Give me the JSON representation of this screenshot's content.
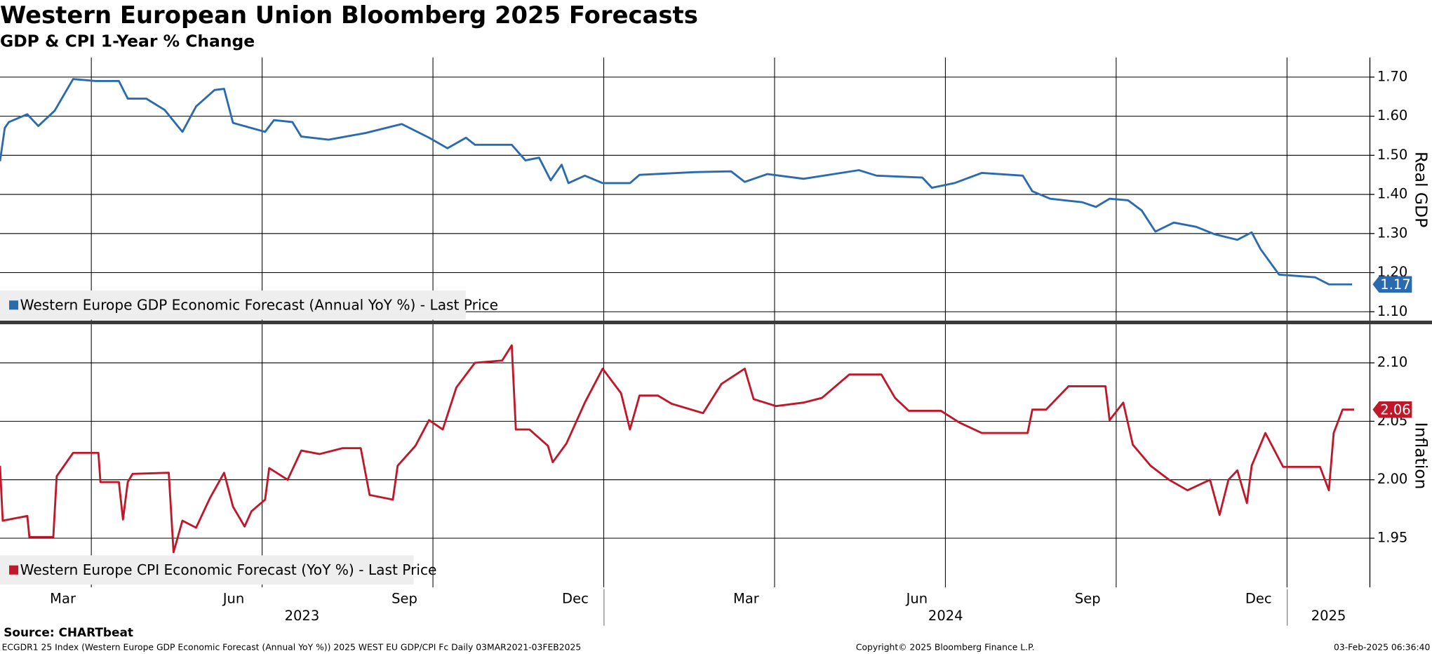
{
  "title": "Western European Union Bloomberg 2025 Forecasts",
  "subtitle": "GDP & CPI 1-Year % Change",
  "footer": {
    "source": "Source: CHARTbeat",
    "description": "ECGDR1 25 Index (Western Europe GDP Economic Forecast (Annual YoY %)) 2025 WEST EU GDP/CPI Fc  Daily 03MAR2021-03FEB2025",
    "copyright": "Copyright© 2025 Bloomberg Finance L.P.",
    "timestamp": "03-Feb-2025 06:36:40"
  },
  "chart_data": [
    {
      "type": "line",
      "ylabel": "Real GDP",
      "grid": true,
      "xlim": [
        2023.116,
        2025.121
      ],
      "ylim": [
        1.075,
        1.75
      ],
      "yticks": [
        {
          "value": 1.1,
          "label": "1.10"
        },
        {
          "value": 1.2,
          "label": "1.20"
        },
        {
          "value": 1.3,
          "label": "1.30"
        },
        {
          "value": 1.4,
          "label": "1.40"
        },
        {
          "value": 1.5,
          "label": "1.50"
        },
        {
          "value": 1.6,
          "label": "1.60"
        },
        {
          "value": 1.7,
          "label": "1.70"
        }
      ],
      "x": [
        2023.116,
        2023.123,
        2023.129,
        2023.156,
        2023.172,
        2023.196,
        2023.223,
        2023.256,
        2023.29,
        2023.303,
        2023.33,
        2023.357,
        2023.383,
        2023.403,
        2023.43,
        2023.444,
        2023.457,
        2023.504,
        2023.517,
        2023.544,
        2023.557,
        2023.597,
        2023.651,
        2023.704,
        2023.744,
        2023.771,
        2023.798,
        2023.811,
        2023.865,
        2023.885,
        2023.905,
        2023.922,
        2023.938,
        2023.948,
        2023.972,
        2023.998,
        2024.038,
        2024.052,
        2024.132,
        2024.186,
        2024.206,
        2024.239,
        2024.292,
        2024.373,
        2024.399,
        2024.466,
        2024.48,
        2024.513,
        2024.553,
        2024.613,
        2024.627,
        2024.653,
        2024.7,
        2024.72,
        2024.74,
        2024.767,
        2024.787,
        2024.807,
        2024.834,
        2024.867,
        2024.894,
        2024.927,
        2024.948,
        2024.961,
        2024.988,
        2025.041,
        2025.061,
        2025.095
      ],
      "series": [
        {
          "name": "Western Europe GDP Economic Forecast (Annual YoY %) - Last Price",
          "color": "#2a6bb0",
          "values": [
            1.485,
            1.57,
            1.585,
            1.605,
            1.575,
            1.614,
            1.695,
            1.69,
            1.69,
            1.645,
            1.645,
            1.616,
            1.56,
            1.625,
            1.667,
            1.67,
            1.583,
            1.56,
            1.59,
            1.585,
            1.548,
            1.54,
            1.557,
            1.58,
            1.545,
            1.518,
            1.545,
            1.527,
            1.527,
            1.487,
            1.494,
            1.436,
            1.476,
            1.429,
            1.448,
            1.429,
            1.429,
            1.45,
            1.457,
            1.459,
            1.432,
            1.452,
            1.44,
            1.462,
            1.448,
            1.443,
            1.417,
            1.429,
            1.455,
            1.448,
            1.408,
            1.389,
            1.38,
            1.368,
            1.389,
            1.385,
            1.359,
            1.305,
            1.328,
            1.317,
            1.298,
            1.284,
            1.303,
            1.26,
            1.195,
            1.188,
            1.17,
            1.17
          ]
        }
      ]
    },
    {
      "type": "line",
      "ylabel": "Inflation",
      "grid": true,
      "xlim": [
        2023.116,
        2025.121
      ],
      "ylim": [
        1.908,
        2.133
      ],
      "yticks": [
        {
          "value": 1.95,
          "label": "1.95"
        },
        {
          "value": 2.0,
          "label": "2.00"
        },
        {
          "value": 2.05,
          "label": "2.05"
        },
        {
          "value": 2.1,
          "label": "2.10"
        }
      ],
      "xticks": [
        {
          "value": 2023.208,
          "label": "Mar"
        },
        {
          "value": 2023.458,
          "label": "Jun"
        },
        {
          "value": 2023.708,
          "label": "Sep"
        },
        {
          "value": 2023.958,
          "label": "Dec"
        },
        {
          "value": 2024.208,
          "label": "Mar"
        },
        {
          "value": 2024.458,
          "label": "Jun"
        },
        {
          "value": 2024.708,
          "label": "Sep"
        },
        {
          "value": 2024.958,
          "label": "Dec"
        }
      ],
      "year_ticks": [
        {
          "value": 2023,
          "label": "2023"
        },
        {
          "value": 2024,
          "label": "2024"
        },
        {
          "value": 2025,
          "label": "2025"
        }
      ],
      "x": [
        2023.116,
        2023.12,
        2023.156,
        2023.159,
        2023.194,
        2023.199,
        2023.223,
        2023.26,
        2023.263,
        2023.29,
        2023.296,
        2023.303,
        2023.31,
        2023.363,
        2023.37,
        2023.383,
        2023.403,
        2023.423,
        2023.444,
        2023.457,
        2023.474,
        2023.484,
        2023.504,
        2023.51,
        2023.537,
        2023.557,
        2023.584,
        2023.617,
        2023.644,
        2023.657,
        2023.691,
        2023.698,
        2023.724,
        2023.744,
        2023.764,
        2023.784,
        2023.811,
        2023.851,
        2023.865,
        2023.871,
        2023.891,
        2023.918,
        2023.925,
        2023.945,
        2023.972,
        2023.998,
        2024.025,
        2024.038,
        2024.052,
        2024.079,
        2024.099,
        2024.145,
        2024.172,
        2024.206,
        2024.219,
        2024.252,
        2024.292,
        2024.319,
        2024.359,
        2024.406,
        2024.426,
        2024.446,
        2024.493,
        2024.52,
        2024.553,
        2024.62,
        2024.627,
        2024.647,
        2024.68,
        2024.734,
        2024.74,
        2024.76,
        2024.774,
        2024.8,
        2024.827,
        2024.854,
        2024.887,
        2024.901,
        2024.914,
        2024.927,
        2024.941,
        2024.948,
        2024.968,
        2024.994,
        2025.048,
        2025.061,
        2025.068,
        2025.081,
        2025.098
      ],
      "series": [
        {
          "name": "Western Europe CPI Economic Forecast (YoY %) - Last Price",
          "color": "#c0182b",
          "values": [
            2.012,
            1.965,
            1.969,
            1.951,
            1.951,
            2.003,
            2.023,
            2.023,
            1.998,
            1.998,
            1.966,
            1.998,
            2.005,
            2.006,
            1.938,
            1.965,
            1.959,
            1.984,
            2.006,
            1.977,
            1.96,
            1.973,
            1.983,
            2.01,
            2.0,
            2.025,
            2.022,
            2.027,
            2.027,
            1.987,
            1.983,
            2.012,
            2.029,
            2.051,
            2.043,
            2.079,
            2.1,
            2.102,
            2.115,
            2.043,
            2.043,
            2.029,
            2.015,
            2.031,
            2.066,
            2.095,
            2.074,
            2.043,
            2.072,
            2.072,
            2.065,
            2.057,
            2.082,
            2.095,
            2.069,
            2.063,
            2.066,
            2.07,
            2.09,
            2.09,
            2.07,
            2.059,
            2.059,
            2.049,
            2.04,
            2.04,
            2.06,
            2.06,
            2.08,
            2.08,
            2.051,
            2.066,
            2.03,
            2.012,
            2.0,
            1.991,
            2.0,
            1.97,
            2.0,
            2.008,
            1.98,
            2.012,
            2.04,
            2.011,
            2.011,
            1.991,
            2.04,
            2.06,
            2.06
          ]
        }
      ]
    }
  ]
}
